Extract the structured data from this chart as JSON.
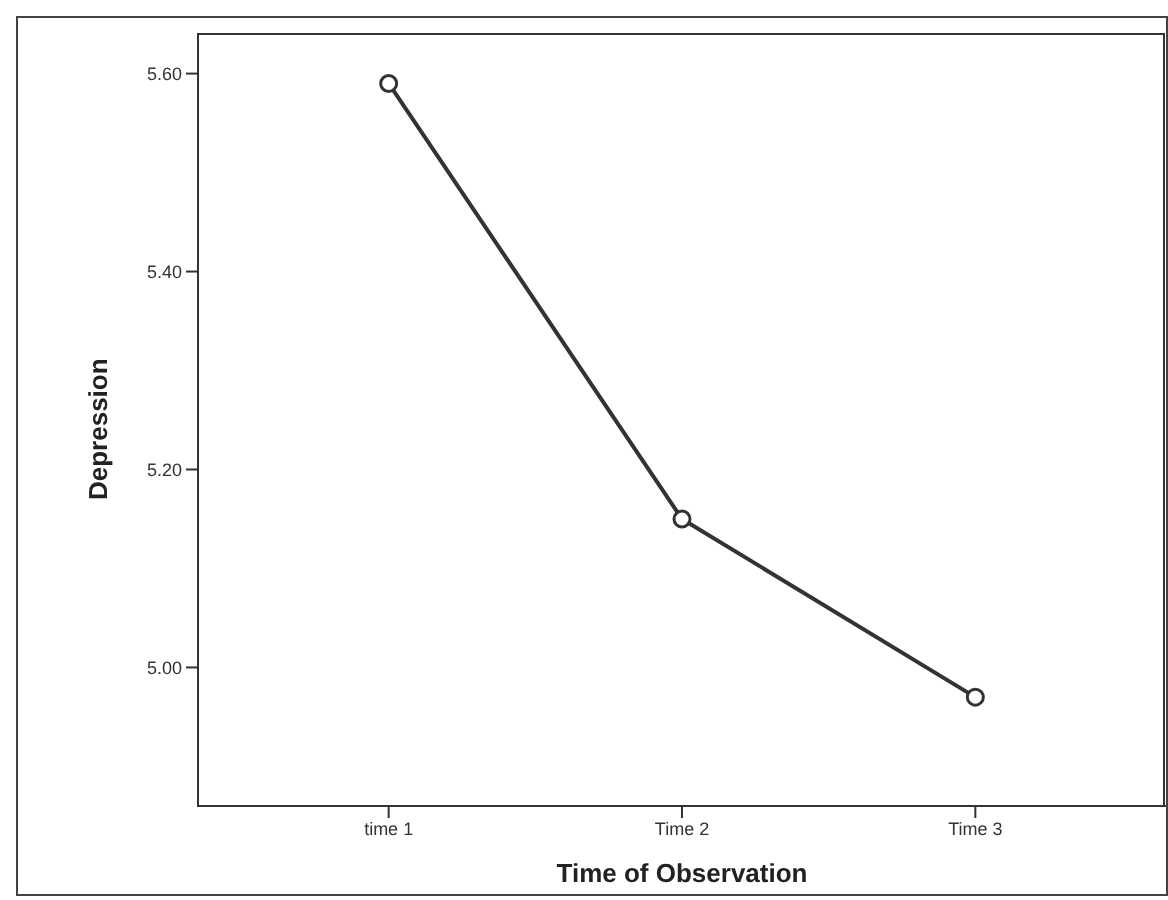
{
  "chart_data": {
    "type": "line",
    "xlabel": "Time of Observation",
    "ylabel": "Depression",
    "categories": [
      "time 1",
      "Time 2",
      "Time 3"
    ],
    "series": [
      {
        "color": "#333333",
        "values": [
          5.59,
          5.15,
          4.97
        ]
      }
    ],
    "ylim": [
      4.86,
      5.64
    ],
    "yticks": [
      {
        "value": 5.0,
        "label": "5.00"
      },
      {
        "value": 5.2,
        "label": "5.20"
      },
      {
        "value": 5.4,
        "label": "5.40"
      },
      {
        "value": 5.6,
        "label": "5.60"
      }
    ],
    "grid": false,
    "marker": "circle",
    "line_style": "solid"
  }
}
